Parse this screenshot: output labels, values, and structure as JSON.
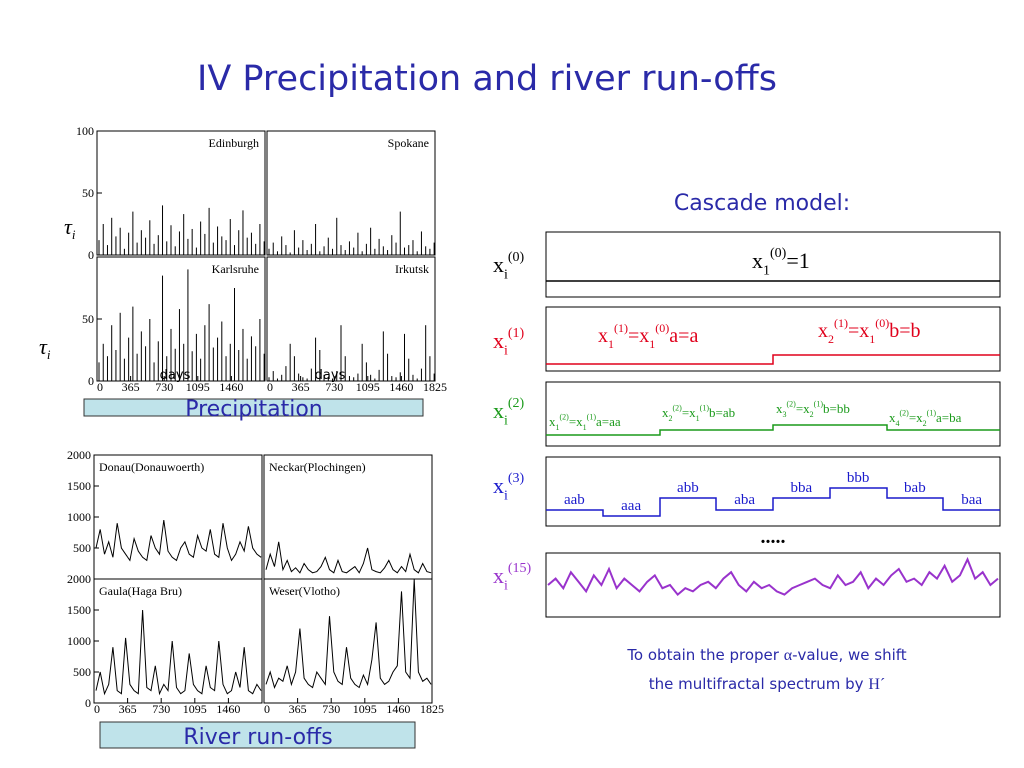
{
  "title": "IV  Precipitation and river run-offs",
  "precipitation": {
    "label": "Precipitation",
    "y_label": [
      "τ",
      "i"
    ],
    "x_label": "days",
    "ylim": [
      0,
      100
    ],
    "yticks_top": [
      0,
      50,
      100
    ],
    "yticks_bottom": [
      0,
      50
    ],
    "xlim": [
      0,
      1825
    ],
    "xticks_left": [
      0,
      365,
      730,
      1095,
      1460
    ],
    "xticks_right": [
      0,
      365,
      730,
      1095,
      1460,
      1825
    ],
    "x": [
      0,
      46,
      92,
      138,
      184,
      230,
      276,
      322,
      368,
      414,
      460,
      506,
      552,
      598,
      644,
      690,
      736,
      782,
      828,
      874,
      920,
      966,
      1012,
      1058,
      1104,
      1150,
      1196,
      1242,
      1288,
      1334,
      1380,
      1426,
      1472,
      1518,
      1564,
      1610,
      1656,
      1702,
      1748,
      1794
    ],
    "panels": [
      {
        "name": "Edinburgh",
        "values": [
          12,
          25,
          8,
          30,
          15,
          22,
          5,
          18,
          35,
          10,
          20,
          14,
          28,
          9,
          16,
          40,
          11,
          24,
          7,
          19,
          33,
          13,
          21,
          6,
          27,
          17,
          38,
          10,
          23,
          15,
          12,
          29,
          8,
          20,
          36,
          14,
          18,
          9,
          25,
          11
        ]
      },
      {
        "name": "Spokane",
        "values": [
          5,
          10,
          3,
          15,
          8,
          2,
          20,
          6,
          12,
          4,
          9,
          25,
          3,
          7,
          14,
          5,
          30,
          8,
          4,
          11,
          6,
          18,
          3,
          9,
          22,
          5,
          13,
          7,
          4,
          16,
          10,
          35,
          6,
          8,
          12,
          3,
          19,
          7,
          5,
          10
        ]
      },
      {
        "name": "Karlsruhe",
        "values": [
          15,
          30,
          20,
          45,
          25,
          55,
          18,
          35,
          60,
          22,
          40,
          28,
          50,
          15,
          32,
          85,
          20,
          42,
          26,
          58,
          30,
          90,
          24,
          38,
          18,
          45,
          62,
          27,
          35,
          48,
          20,
          30,
          75,
          25,
          42,
          18,
          36,
          28,
          50,
          22
        ]
      },
      {
        "name": "Irkutsk",
        "values": [
          3,
          8,
          2,
          5,
          12,
          30,
          20,
          6,
          3,
          2,
          10,
          35,
          25,
          5,
          3,
          2,
          8,
          45,
          20,
          4,
          3,
          6,
          30,
          15,
          5,
          2,
          9,
          40,
          22,
          4,
          3,
          7,
          38,
          18,
          5,
          2,
          10,
          45,
          20,
          6
        ]
      }
    ]
  },
  "runoff": {
    "label": "River run-offs",
    "ylim": [
      0,
      2000
    ],
    "yticks_top": [
      500,
      1000,
      1500,
      2000
    ],
    "yticks_bottom": [
      0,
      500,
      1000,
      1500,
      2000
    ],
    "xlim": [
      0,
      1825
    ],
    "xticks_left": [
      0,
      365,
      730,
      1095,
      1460
    ],
    "xticks_right": [
      0,
      365,
      730,
      1095,
      1460,
      1825
    ],
    "x": [
      0,
      46,
      92,
      138,
      184,
      230,
      276,
      322,
      368,
      414,
      460,
      506,
      552,
      598,
      644,
      690,
      736,
      782,
      828,
      874,
      920,
      966,
      1012,
      1058,
      1104,
      1150,
      1196,
      1242,
      1288,
      1334,
      1380,
      1426,
      1472,
      1518,
      1564,
      1610,
      1656,
      1702,
      1748,
      1794
    ],
    "panels": [
      {
        "name": "Donau(Donauwoerth)",
        "values": [
          500,
          800,
          400,
          600,
          350,
          900,
          500,
          400,
          300,
          650,
          450,
          350,
          300,
          700,
          500,
          400,
          950,
          450,
          350,
          300,
          500,
          600,
          400,
          350,
          700,
          500,
          450,
          800,
          400,
          350,
          900,
          500,
          300,
          400,
          600,
          450,
          850,
          500,
          400,
          350
        ]
      },
      {
        "name": "Neckar(Plochingen)",
        "values": [
          150,
          400,
          200,
          600,
          150,
          300,
          120,
          180,
          100,
          250,
          150,
          100,
          120,
          200,
          350,
          150,
          100,
          300,
          120,
          100,
          150,
          200,
          100,
          250,
          500,
          150,
          120,
          100,
          180,
          300,
          150,
          100,
          200,
          120,
          400,
          150,
          100,
          250,
          120,
          100
        ]
      },
      {
        "name": "Gaula(Haga Bru)",
        "values": [
          200,
          500,
          150,
          300,
          900,
          200,
          150,
          1050,
          300,
          200,
          150,
          1500,
          250,
          200,
          600,
          150,
          300,
          200,
          1000,
          250,
          150,
          200,
          800,
          300,
          200,
          150,
          600,
          250,
          200,
          1000,
          300,
          150,
          200,
          500,
          250,
          900,
          200,
          150,
          300,
          200
        ]
      },
      {
        "name": "Weser(Vlotho)",
        "values": [
          300,
          500,
          250,
          400,
          350,
          600,
          300,
          500,
          1200,
          400,
          300,
          250,
          500,
          400,
          300,
          1400,
          500,
          350,
          300,
          900,
          400,
          300,
          250,
          450,
          300,
          700,
          1300,
          400,
          300,
          350,
          500,
          600,
          1800,
          500,
          400,
          2000,
          500,
          350,
          400,
          300
        ]
      }
    ]
  },
  "cascade": {
    "title": "Cascade model:",
    "rows": [
      {
        "label": [
          "x",
          "i",
          "(0)"
        ],
        "formulas": [
          [
            "x",
            "1",
            "(0)",
            "=1"
          ]
        ]
      },
      {
        "label": [
          "x",
          "i",
          "(1)"
        ],
        "formulas": [
          [
            "x",
            "1",
            "(1)",
            "=x",
            "1",
            "(0)",
            "a=a"
          ],
          [
            "x",
            "2",
            "(1)",
            "=x",
            "1",
            "(0)",
            "b=b"
          ]
        ]
      },
      {
        "label": [
          "x",
          "i",
          "(2)"
        ],
        "formulas": [
          [
            "x",
            "1",
            "(2)",
            "=x",
            "1",
            "(1)",
            "a=aa"
          ],
          [
            "x",
            "2",
            "(2)",
            "=x",
            "1",
            "(1)",
            "b=ab"
          ],
          [
            "x",
            "3",
            "(2)",
            "=x",
            "2",
            "(1)",
            "b=bb"
          ],
          [
            "x",
            "4",
            "(2)",
            "=x",
            "2",
            "(1)",
            "a=ba"
          ]
        ]
      },
      {
        "label": [
          "x",
          "i",
          "(3)"
        ],
        "words": [
          "aab",
          "aaa",
          "abb",
          "aba",
          "bba",
          "bbb",
          "bab",
          "baa"
        ]
      },
      {
        "label": [
          "x",
          "i",
          "(15)"
        ],
        "ylim": [
          0,
          1
        ],
        "values": [
          0.5,
          0.6,
          0.45,
          0.7,
          0.55,
          0.4,
          0.65,
          0.5,
          0.75,
          0.45,
          0.6,
          0.5,
          0.4,
          0.55,
          0.65,
          0.45,
          0.5,
          0.35,
          0.45,
          0.4,
          0.5,
          0.55,
          0.45,
          0.6,
          0.7,
          0.5,
          0.4,
          0.55,
          0.45,
          0.5,
          0.4,
          0.35,
          0.45,
          0.5,
          0.55,
          0.6,
          0.5,
          0.45,
          0.65,
          0.5,
          0.55,
          0.7,
          0.45,
          0.6,
          0.5,
          0.65,
          0.75,
          0.55,
          0.6,
          0.5,
          0.7,
          0.6,
          0.8,
          0.55,
          0.65,
          0.9,
          0.6,
          0.7,
          0.5,
          0.6
        ]
      }
    ],
    "dots": ".....",
    "note": [
      [
        "To obtain the proper ",
        "α",
        "-value, we shift"
      ],
      [
        "the multifractal spectrum by ",
        "H´"
      ]
    ]
  }
}
